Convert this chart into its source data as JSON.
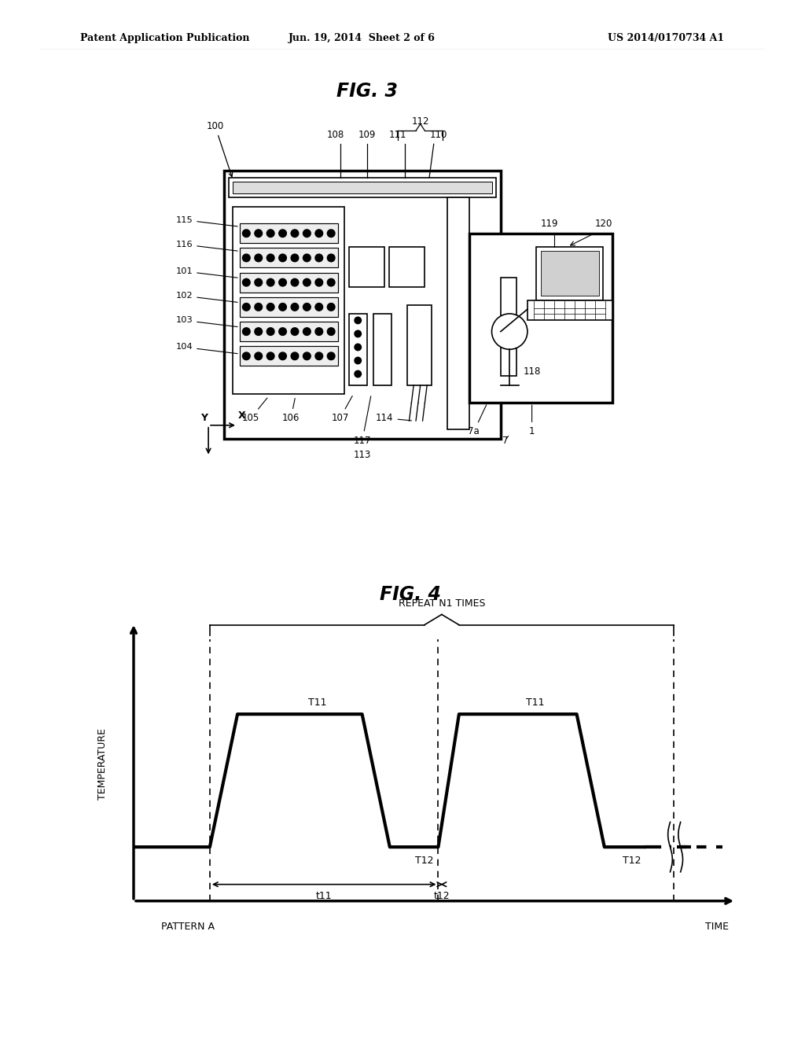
{
  "bg_color": "#ffffff",
  "header_left": "Patent Application Publication",
  "header_center": "Jun. 19, 2014  Sheet 2 of 6",
  "header_right": "US 2014/0170734 A1",
  "fig3_title": "FIG. 3",
  "fig4_title": "FIG. 4",
  "fig4_repeat_label": "REPEAT N1 TIMES",
  "fig4_ylabel": "TEMPERATURE",
  "fig4_xlabel_left": "PATTERN A",
  "fig4_xlabel_right": "TIME",
  "line_color": "#000000",
  "lw_main": 2.5,
  "lw_thin": 1.2
}
